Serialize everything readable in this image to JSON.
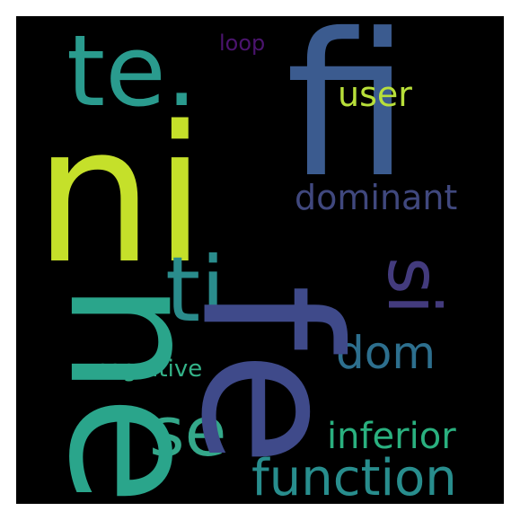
{
  "words": {
    "fi": {
      "text": "fi",
      "color": "#3b5b8f"
    },
    "ni": {
      "text": "ni",
      "color": "#c5e02a"
    },
    "ne": {
      "text": "ne",
      "color": "#2aa58b"
    },
    "fe": {
      "text": "fe",
      "color": "#3f4a8a"
    },
    "te": {
      "text": "te.",
      "color": "#2a9b8e"
    },
    "loop": {
      "text": "loop",
      "color": "#4b146e"
    },
    "user": {
      "text": "user",
      "color": "#b8df3a"
    },
    "dominant": {
      "text": "dominant",
      "color": "#40487e"
    },
    "ti": {
      "text": "ti",
      "color": "#2a8c8c"
    },
    "si": {
      "text": "si",
      "color": "#433b7d"
    },
    "dom": {
      "text": "dom",
      "color": "#2d6f8e"
    },
    "cognitive": {
      "text": "cognitive",
      "color": "#33b288"
    },
    "se": {
      "text": "se",
      "color": "#34a88a"
    },
    "inferior": {
      "text": "inferior",
      "color": "#2ab07f"
    },
    "function": {
      "text": "function",
      "color": "#288d8d"
    }
  }
}
